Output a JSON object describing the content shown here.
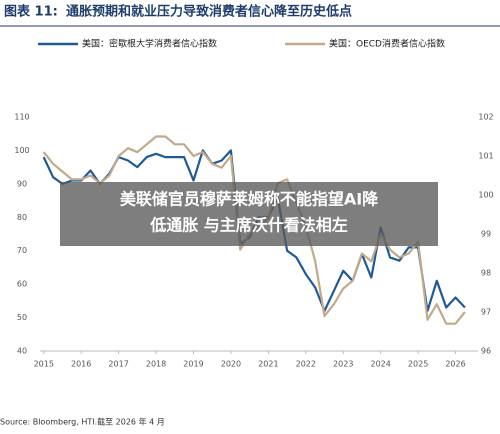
{
  "chart_data": {
    "type": "line",
    "figure_label": "图表 11:",
    "title": "通胀预期和就业压力导致消费者信心降至历史低点",
    "source": "Source: Bloomberg, HTI.截至 2026 年 4 月",
    "xlim": [
      2014.9,
      2026.6
    ],
    "xticks": [
      2015,
      2016,
      2017,
      2018,
      2019,
      2020,
      2021,
      2022,
      2023,
      2024,
      2025,
      2026
    ],
    "ylim": [
      40,
      110
    ],
    "yticks": [
      40,
      50,
      60,
      70,
      80,
      90,
      100,
      110
    ],
    "y2lim": [
      96,
      102
    ],
    "y2ticks": [
      96,
      97,
      98,
      99,
      100,
      101,
      102
    ],
    "grid": false,
    "x": [
      2015,
      2015.25,
      2015.5,
      2015.75,
      2016,
      2016.25,
      2016.5,
      2016.75,
      2017,
      2017.25,
      2017.5,
      2017.75,
      2018,
      2018.25,
      2018.5,
      2018.75,
      2019,
      2019.25,
      2019.5,
      2019.75,
      2020,
      2020.25,
      2020.5,
      2020.75,
      2021,
      2021.25,
      2021.5,
      2021.75,
      2022,
      2022.25,
      2022.5,
      2022.75,
      2023,
      2023.25,
      2023.5,
      2023.75,
      2024,
      2024.25,
      2024.5,
      2024.75,
      2025,
      2025.25,
      2025.5,
      2025.75,
      2026,
      2026.25
    ],
    "series": [
      {
        "name": "美国：密歇根大学消费者信心指数",
        "color": "#1f5a96",
        "axis": "y",
        "values": [
          98,
          92,
          90,
          91,
          91,
          94,
          90,
          93,
          98,
          97,
          95,
          98,
          99,
          98,
          98,
          98,
          91,
          100,
          96,
          97,
          100,
          72,
          74,
          80,
          80,
          86,
          70,
          68,
          63,
          59,
          52,
          58,
          64,
          61,
          69,
          62,
          77,
          68,
          67,
          71,
          71,
          52,
          61,
          53,
          56,
          53
        ]
      },
      {
        "name": "美国：OECD消费者信心指数",
        "color": "#c2a98a",
        "axis": "y2",
        "values": [
          101.1,
          100.8,
          100.6,
          100.4,
          100.4,
          100.5,
          100.3,
          100.5,
          101.0,
          101.2,
          101.1,
          101.3,
          101.5,
          101.5,
          101.3,
          101.3,
          101.0,
          101.1,
          100.8,
          100.7,
          101.0,
          98.6,
          99.0,
          99.2,
          99.4,
          100.3,
          100.4,
          99.8,
          99.2,
          98.3,
          96.9,
          97.2,
          97.6,
          97.8,
          98.5,
          98.3,
          99.0,
          98.6,
          98.4,
          98.5,
          98.8,
          96.8,
          97.2,
          96.7,
          96.7,
          97.0
        ]
      }
    ]
  },
  "overlay_text": [
    "美联储官员穆萨莱姆称不能指望AI降",
    "低通胀 与主席沃什看法相左"
  ]
}
